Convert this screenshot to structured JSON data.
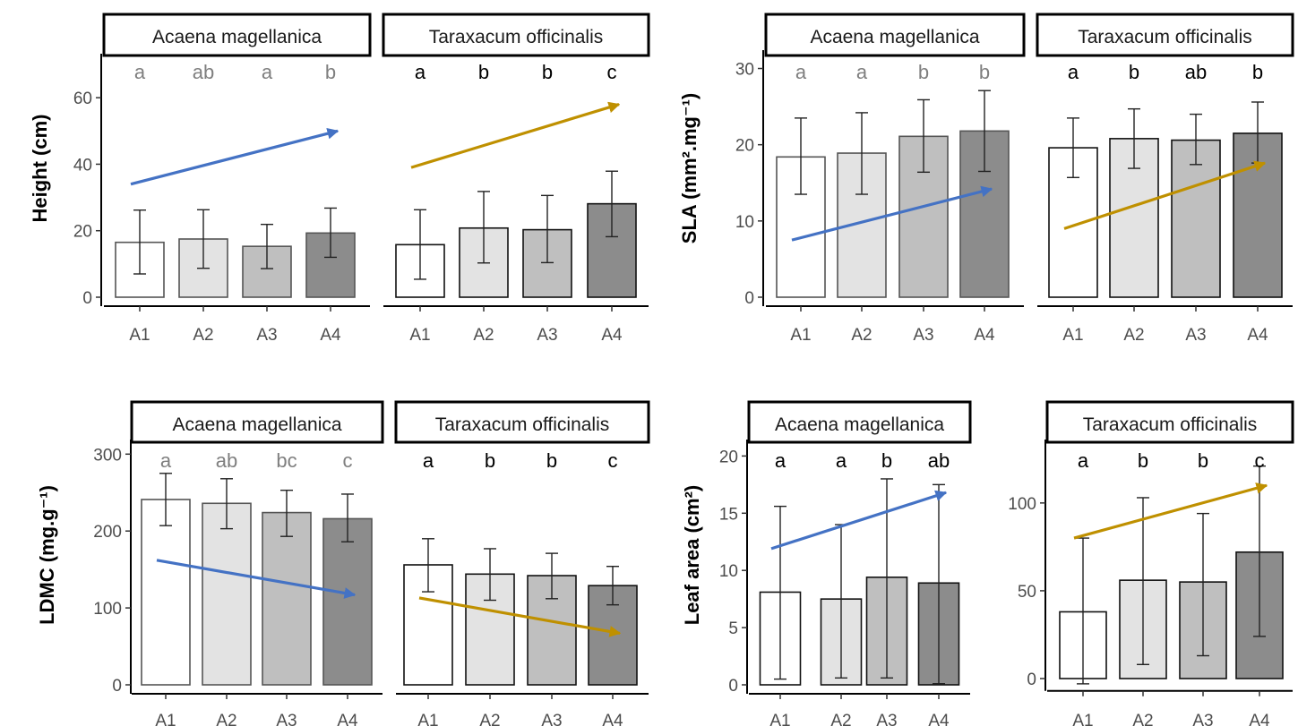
{
  "figure": {
    "colors": {
      "acaena_arrow": "#4472C4",
      "taraxacum_arrow": "#BF9000",
      "A1_fill": "#FFFFFF",
      "A2_fill": "#E3E3E3",
      "A3_fill": "#BFBFBF",
      "A4_fill": "#8C8C8C",
      "letters_acaena": "#7F7F7F",
      "letters_taraxacum": "#000000"
    }
  },
  "chart_data": [
    {
      "id": "height",
      "type": "bar",
      "ylabel": "Height (cm)",
      "ylim": [
        0,
        70
      ],
      "yticks": [
        0,
        20,
        40,
        60
      ],
      "categories": [
        "A1",
        "A2",
        "A3",
        "A4"
      ],
      "panels": [
        {
          "species": "Acaena magellanica",
          "values": [
            16.5,
            17.5,
            15.3,
            19.3
          ],
          "err_low": [
            7,
            8.7,
            8.6,
            12
          ],
          "err_high": [
            26.2,
            26.3,
            21.9,
            26.8
          ],
          "letters": [
            "a",
            "ab",
            "a",
            "b"
          ],
          "trend": {
            "from": 34,
            "to": 50,
            "color": "acaena"
          }
        },
        {
          "species": "Taraxacum officinalis",
          "values": [
            15.8,
            20.8,
            20.3,
            28.1
          ],
          "err_low": [
            5.4,
            10.3,
            10.4,
            18.2
          ],
          "err_high": [
            26.3,
            31.8,
            30.6,
            37.9
          ],
          "letters": [
            "a",
            "b",
            "b",
            "c"
          ],
          "trend": {
            "from": 39,
            "to": 58,
            "color": "taraxacum"
          }
        }
      ]
    },
    {
      "id": "sla",
      "type": "bar",
      "ylabel": "SLA (mm².mg⁻¹)",
      "ylim": [
        0,
        31
      ],
      "yticks": [
        0,
        10,
        20,
        30
      ],
      "categories": [
        "A1",
        "A2",
        "A3",
        "A4"
      ],
      "panels": [
        {
          "species": "Acaena magellanica",
          "values": [
            18.4,
            18.9,
            21.1,
            21.8
          ],
          "err_low": [
            13.5,
            13.5,
            16.4,
            16.5
          ],
          "err_high": [
            23.5,
            24.2,
            25.9,
            27.1
          ],
          "letters": [
            "a",
            "a",
            "b",
            "b"
          ],
          "trend": {
            "from": 7.5,
            "to": 14.2,
            "color": "acaena"
          }
        },
        {
          "species": "Taraxacum officinalis",
          "values": [
            19.6,
            20.8,
            20.6,
            21.5
          ],
          "err_low": [
            15.7,
            16.9,
            17.4,
            17.6
          ],
          "err_high": [
            23.5,
            24.7,
            24,
            25.6
          ],
          "letters": [
            "a",
            "b",
            "ab",
            "b"
          ],
          "trend": {
            "from": 9,
            "to": 17.6,
            "color": "taraxacum"
          }
        }
      ]
    },
    {
      "id": "ldmc",
      "type": "bar",
      "ylabel": "LDMC (mg.g⁻¹)",
      "ylim": [
        0,
        305
      ],
      "yticks": [
        0,
        100,
        200,
        300
      ],
      "categories": [
        "A1",
        "A2",
        "A3",
        "A4"
      ],
      "panels": [
        {
          "species": "Acaena magellanica",
          "values": [
            241,
            236,
            224,
            216
          ],
          "err_low": [
            207,
            203,
            193,
            186
          ],
          "err_high": [
            275,
            268,
            253,
            248
          ],
          "letters": [
            "a",
            "ab",
            "bc",
            "c"
          ],
          "trend": {
            "from": 162,
            "to": 117,
            "color": "acaena"
          }
        },
        {
          "species": "Taraxacum officinalis",
          "values": [
            156,
            144,
            142,
            129
          ],
          "err_low": [
            121,
            110,
            112,
            104
          ],
          "err_high": [
            190,
            177,
            171,
            154
          ],
          "letters": [
            "a",
            "b",
            "b",
            "c"
          ],
          "trend": {
            "from": 113,
            "to": 67,
            "color": "taraxacum"
          }
        }
      ]
    },
    {
      "id": "leaf_area",
      "type": "bar",
      "ylabel": "Leaf area (cm²)",
      "categories": [
        "A1",
        "A2",
        "A3",
        "A4"
      ],
      "panels": [
        {
          "species": "Acaena magellanica",
          "ylim": [
            0,
            20.5
          ],
          "yticks": [
            0,
            5,
            10,
            15,
            20
          ],
          "values": [
            8.1,
            7.5,
            9.4,
            8.9
          ],
          "err_low": [
            0.5,
            0.6,
            0.6,
            0.1
          ],
          "err_high": [
            15.6,
            14,
            18,
            17.5
          ],
          "letters": [
            "a",
            "a",
            "b",
            "ab"
          ],
          "trend": {
            "from": 11.9,
            "to": 16.8,
            "color": "acaena"
          }
        },
        {
          "species": "Taraxacum officinalis",
          "ylim": [
            -5,
            130
          ],
          "yticks": [
            0,
            50,
            100
          ],
          "values": [
            38,
            56,
            55,
            72
          ],
          "err_low": [
            -3,
            8,
            13,
            24
          ],
          "err_high": [
            80,
            103,
            94,
            121
          ],
          "letters": [
            "a",
            "b",
            "b",
            "c"
          ],
          "trend": {
            "from": 80,
            "to": 110,
            "color": "taraxacum"
          }
        }
      ]
    }
  ]
}
